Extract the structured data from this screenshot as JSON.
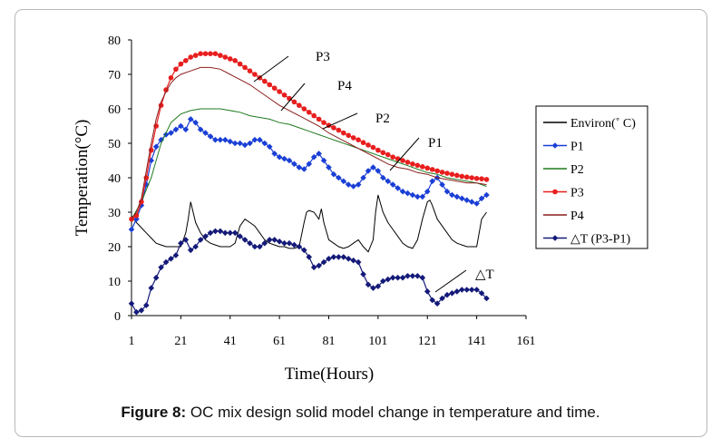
{
  "caption": {
    "label": "Figure 8:",
    "text": "OC mix design solid model change in temperature and time."
  },
  "chart_data": {
    "type": "line",
    "xlabel": "Time(Hours)",
    "ylabel": "Temperation(°C)",
    "xlim": [
      1,
      161
    ],
    "ylim": [
      0,
      80
    ],
    "xticks": [
      1,
      21,
      41,
      61,
      81,
      101,
      121,
      141,
      161
    ],
    "yticks": [
      0,
      10,
      20,
      30,
      40,
      50,
      60,
      70,
      80
    ],
    "legend_position": "right",
    "series": [
      {
        "name": "Environ(˚ C)",
        "color": "#000000",
        "marker": "none",
        "x": [
          1,
          3,
          5,
          7,
          9,
          11,
          13,
          15,
          17,
          19,
          21,
          23,
          24,
          25,
          26,
          27,
          29,
          31,
          33,
          35,
          37,
          39,
          41,
          43,
          45,
          47,
          49,
          51,
          53,
          55,
          57,
          59,
          61,
          63,
          65,
          67,
          69,
          71,
          72,
          73,
          75,
          77,
          78,
          79,
          81,
          83,
          85,
          87,
          89,
          91,
          93,
          95,
          97,
          99,
          100,
          101,
          103,
          105,
          107,
          109,
          111,
          113,
          115,
          117,
          119,
          121,
          122,
          123,
          125,
          127,
          129,
          131,
          133,
          135,
          137,
          139,
          141,
          143,
          145
        ],
        "y": [
          29,
          27,
          25.5,
          24,
          22.5,
          21,
          20.5,
          20,
          20,
          20,
          20,
          24,
          28,
          33,
          30,
          27,
          24,
          22,
          21,
          20.5,
          20,
          20,
          20,
          21,
          26,
          28,
          27,
          26,
          24,
          22,
          21,
          20.5,
          20,
          20,
          19.5,
          19.5,
          20,
          27,
          30,
          30.5,
          30,
          28,
          31,
          27,
          22,
          21,
          20,
          19.5,
          20,
          21,
          22,
          20,
          18.5,
          22,
          30,
          35,
          30,
          27,
          25,
          23,
          21,
          20,
          19.5,
          22,
          28,
          33,
          33.5,
          32,
          28,
          26,
          24,
          22,
          21,
          20.5,
          20,
          20,
          20,
          28,
          30
        ]
      },
      {
        "name": "P1",
        "color": "#1a3fd6",
        "marker": "diamond",
        "x": [
          1,
          3,
          5,
          7,
          9,
          11,
          13,
          15,
          17,
          19,
          21,
          23,
          25,
          27,
          29,
          31,
          33,
          35,
          37,
          39,
          41,
          43,
          45,
          47,
          49,
          51,
          53,
          55,
          57,
          59,
          61,
          63,
          65,
          67,
          69,
          71,
          73,
          75,
          77,
          79,
          81,
          83,
          85,
          87,
          89,
          91,
          93,
          95,
          97,
          99,
          101,
          103,
          105,
          107,
          109,
          111,
          113,
          115,
          117,
          119,
          121,
          123,
          125,
          127,
          129,
          131,
          133,
          135,
          137,
          139,
          141,
          143,
          145
        ],
        "y": [
          25,
          28,
          32,
          38,
          45,
          49,
          51,
          52.5,
          53,
          54,
          55,
          54,
          57,
          56,
          54,
          53,
          52,
          51,
          51,
          51,
          50.5,
          50,
          50,
          49.5,
          50,
          51,
          51,
          50,
          49,
          47,
          46,
          45.5,
          45,
          44,
          43,
          42.5,
          44,
          46,
          47,
          45,
          43,
          41,
          40,
          39,
          38,
          37.5,
          38,
          40,
          42,
          43,
          42,
          40,
          39,
          38,
          37,
          36,
          35.5,
          35,
          34.5,
          34.5,
          36,
          39,
          40,
          38,
          36,
          35,
          34.5,
          34,
          33.5,
          33,
          32.5,
          34,
          35
        ]
      },
      {
        "name": "P2",
        "color": "#1f7a1f",
        "marker": "none",
        "x": [
          1,
          5,
          9,
          13,
          17,
          21,
          25,
          29,
          33,
          37,
          41,
          45,
          49,
          53,
          57,
          61,
          65,
          69,
          73,
          77,
          81,
          85,
          89,
          93,
          97,
          101,
          105,
          109,
          113,
          117,
          121,
          125,
          129,
          133,
          137,
          141,
          145
        ],
        "y": [
          28,
          33,
          40,
          50,
          56,
          58.5,
          59.5,
          60,
          60,
          60,
          59.5,
          59,
          58,
          57.5,
          57,
          56,
          55.5,
          54.5,
          53.5,
          52.5,
          51.5,
          50.5,
          49.5,
          48.5,
          47.5,
          46.5,
          45.5,
          44.5,
          43.5,
          42.5,
          41.5,
          41,
          40,
          39.5,
          39,
          38.5,
          37.5
        ]
      },
      {
        "name": "P3",
        "color": "#e81e1e",
        "marker": "circle",
        "x": [
          1,
          3,
          5,
          7,
          9,
          11,
          13,
          15,
          17,
          19,
          21,
          23,
          25,
          27,
          29,
          31,
          33,
          35,
          37,
          39,
          41,
          43,
          45,
          47,
          49,
          51,
          53,
          55,
          57,
          59,
          61,
          63,
          65,
          67,
          69,
          71,
          73,
          75,
          77,
          79,
          81,
          83,
          85,
          87,
          89,
          91,
          93,
          95,
          97,
          99,
          101,
          103,
          105,
          107,
          109,
          111,
          113,
          115,
          117,
          119,
          121,
          123,
          125,
          127,
          129,
          131,
          133,
          135,
          137,
          139,
          141,
          143,
          145
        ],
        "y": [
          28,
          29,
          33,
          40,
          48,
          55,
          61,
          65.5,
          69,
          71.5,
          73,
          74,
          75,
          75.5,
          76,
          76,
          76,
          76,
          75.5,
          75,
          74.5,
          74,
          73,
          72,
          71,
          70,
          69,
          68,
          67,
          66,
          65,
          64,
          63,
          62,
          61,
          60,
          59,
          58,
          57,
          56,
          55.2,
          54.5,
          53.8,
          53,
          52.3,
          51.6,
          51,
          50.2,
          49.5,
          48.8,
          48,
          47.3,
          46.7,
          46,
          45.5,
          45,
          44.5,
          44,
          43.6,
          43.2,
          42.8,
          42.4,
          42,
          41.6,
          41.3,
          41,
          40.7,
          40.4,
          40.2,
          40,
          39.8,
          39.7,
          39.5
        ]
      },
      {
        "name": "P4",
        "color": "#8b1c1c",
        "marker": "none",
        "x": [
          1,
          3,
          5,
          7,
          9,
          11,
          13,
          15,
          17,
          19,
          21,
          25,
          29,
          33,
          37,
          41,
          45,
          49,
          53,
          57,
          61,
          65,
          69,
          73,
          77,
          81,
          85,
          89,
          93,
          97,
          101,
          105,
          109,
          113,
          117,
          121,
          125,
          129,
          133,
          137,
          141,
          145
        ],
        "y": [
          28,
          30,
          34,
          42,
          50,
          57,
          62,
          65,
          67.5,
          69,
          70,
          71,
          72,
          72,
          71.5,
          70,
          68.5,
          67,
          65,
          63,
          61,
          59.5,
          58,
          56.5,
          55,
          53,
          51.5,
          50,
          48.5,
          47,
          45.5,
          44,
          43,
          42.5,
          41.5,
          41,
          40,
          39.5,
          39,
          38.5,
          38.5,
          38
        ]
      },
      {
        "name": "△T (P3-P1)",
        "color": "#141a78",
        "marker": "diamond",
        "x": [
          1,
          3,
          5,
          7,
          9,
          11,
          13,
          15,
          17,
          19,
          21,
          23,
          25,
          27,
          29,
          31,
          33,
          35,
          37,
          39,
          41,
          43,
          45,
          47,
          49,
          51,
          53,
          55,
          57,
          59,
          61,
          63,
          65,
          67,
          69,
          71,
          73,
          75,
          77,
          79,
          81,
          83,
          85,
          87,
          89,
          91,
          93,
          95,
          97,
          99,
          101,
          103,
          105,
          107,
          109,
          111,
          113,
          115,
          117,
          119,
          121,
          123,
          125,
          127,
          129,
          131,
          133,
          135,
          137,
          139,
          141,
          143,
          145
        ],
        "y": [
          3.5,
          1,
          1.5,
          3,
          8,
          11,
          14,
          15.5,
          16.5,
          17.5,
          21,
          22,
          19,
          20,
          22,
          23,
          24,
          24.5,
          24.5,
          24,
          24,
          24,
          23,
          22,
          21,
          20,
          20,
          21,
          22,
          22,
          21.5,
          21,
          21,
          20.5,
          20,
          19,
          17,
          14,
          14.5,
          15.5,
          16.5,
          17,
          17,
          17,
          16.5,
          16,
          15.5,
          12,
          9,
          8,
          8.5,
          10,
          10.5,
          11,
          11,
          11,
          11.5,
          11.5,
          11.5,
          11,
          7,
          4.5,
          3.5,
          5,
          6,
          6.5,
          7,
          7.5,
          7.5,
          7.5,
          7.5,
          6.5,
          5
        ]
      }
    ],
    "annotations": [
      {
        "text": "P3",
        "x": 101,
        "y": 77
      },
      {
        "text": "P4",
        "x": 101,
        "y": 67
      },
      {
        "text": "P2",
        "x": 101,
        "y": 57
      },
      {
        "text": "P1",
        "x": 101,
        "y": 49
      },
      {
        "text": "△T",
        "x": 101,
        "y": 12
      }
    ]
  }
}
